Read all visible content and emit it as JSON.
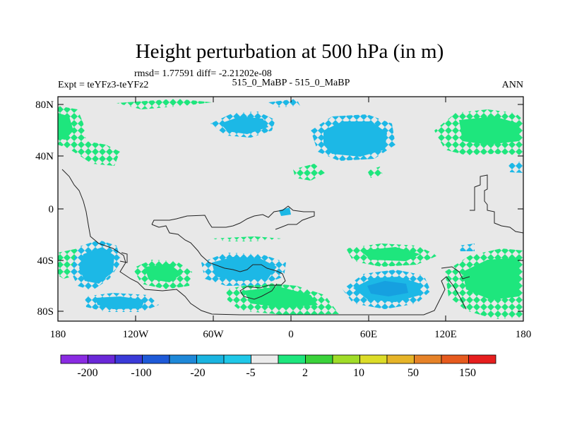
{
  "plot": {
    "title": "Height perturbation at 500 hPa (in m)",
    "stats": "rmsd= 1.77591 diff= -2.21202e-08",
    "left_label": "Expt = teYFz3-teYFz2",
    "center_label": "515_0_MaBP - 515_0_MaBP",
    "right_label": "ANN"
  },
  "axes": {
    "lon_ticks": [
      "180",
      "120W",
      "60W",
      "0",
      "60E",
      "120E",
      "180"
    ],
    "lat_ticks": [
      "80N",
      "40N",
      "0",
      "40S",
      "80S"
    ]
  },
  "colorbar": {
    "colors": [
      "#8a2be2",
      "#6a28d8",
      "#3a3ad8",
      "#1e5ad8",
      "#1e88d8",
      "#1ab4e0",
      "#1fc8e8",
      "#ebebeb",
      "#1ee67d",
      "#3ad23a",
      "#a0dc28",
      "#dcdc28",
      "#e6b428",
      "#e68228",
      "#e65a1e",
      "#e61e1e"
    ],
    "labels": [
      "-200",
      "-100",
      "-20",
      "-5",
      "2",
      "10",
      "50",
      "150"
    ]
  },
  "map_data": {
    "lon_range": [
      -180,
      180
    ],
    "lat_range": [
      -90,
      90
    ],
    "background_color": "#e8e8e8",
    "positive_color": "#1ee67d",
    "negative_color": "#1cb8e6",
    "strong_negative_color": "#16a0e0",
    "strong_positive_color": "#3ad23a"
  }
}
